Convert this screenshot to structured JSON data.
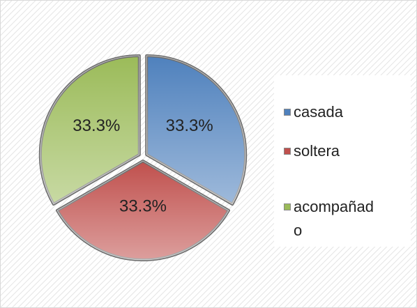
{
  "chart_data": {
    "type": "pie",
    "categories": [
      "casada",
      "soltera",
      "acompañado"
    ],
    "values": [
      33.3,
      33.3,
      33.3
    ],
    "value_labels": [
      "33.3%",
      "33.3%",
      "33.3%"
    ],
    "colors": [
      "#4f81bd",
      "#c0504d",
      "#9bbb59"
    ],
    "legend": "right"
  }
}
